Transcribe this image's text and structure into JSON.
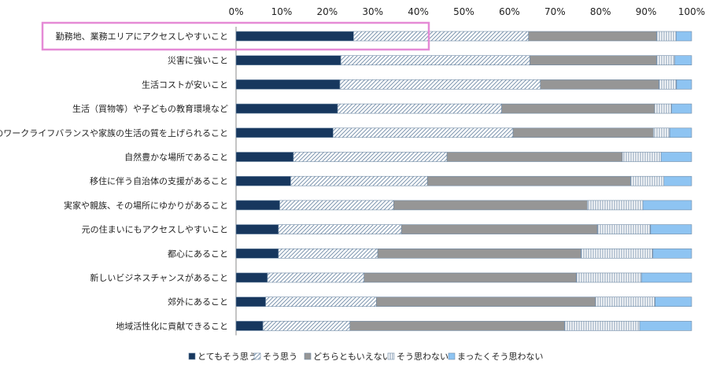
{
  "chart_data": {
    "type": "bar",
    "orientation": "horizontal",
    "stacked": "percent",
    "title": "",
    "xlabel": "",
    "ylabel": "",
    "xlim": [
      0,
      100
    ],
    "x_ticks": [
      "0%",
      "10%",
      "20%",
      "30%",
      "40%",
      "50%",
      "60%",
      "70%",
      "80%",
      "90%",
      "100%"
    ],
    "grid": false,
    "legend_position": "bottom",
    "highlight_category_index": 0,
    "highlight_color": "#e58ad6",
    "categories": [
      "勤務地、業務エリアにアクセスしやすいこと",
      "災害に強いこと",
      "生活コストが安いこと",
      "生活（買物等）や子どもの教育環境など",
      "自身のワークライフバランスや家族の生活の質を上げられること",
      "自然豊かな場所であること",
      "移住に伴う自治体の支援があること",
      "実家や親族、その場所にゆかりがあること",
      "元の住まいにもアクセスしやすいこと",
      "都心にあること",
      "新しいビジネスチャンスがあること",
      "郊外にあること",
      "地域活性化に貢献できること"
    ],
    "series": [
      {
        "name": "とてもそう思う",
        "color": "#17375e",
        "pattern": "solid",
        "values": [
          25.8,
          23.0,
          22.8,
          22.3,
          21.3,
          12.6,
          12.0,
          9.6,
          9.3,
          9.3,
          6.9,
          6.5,
          5.9
        ]
      },
      {
        "name": "そう思う",
        "color": "#ffffff",
        "pattern": "diagonal",
        "values": [
          38.4,
          41.5,
          44.0,
          36.0,
          39.5,
          33.7,
          30.0,
          25.0,
          27.0,
          21.8,
          21.2,
          24.3,
          19.1
        ]
      },
      {
        "name": "どちらともいえない",
        "color": "#969696",
        "pattern": "solid",
        "values": [
          28.1,
          27.8,
          26.0,
          33.6,
          30.8,
          38.5,
          44.6,
          42.5,
          43.0,
          44.6,
          46.6,
          48.1,
          47.1
        ]
      },
      {
        "name": "そう思わない",
        "color": "#ffffff",
        "pattern": "vertical",
        "values": [
          4.3,
          4.0,
          3.9,
          3.7,
          3.6,
          8.5,
          7.3,
          12.2,
          11.7,
          15.8,
          14.3,
          13.1,
          16.5
        ]
      },
      {
        "name": "まったくそう思わない",
        "color": "#8ec4f2",
        "pattern": "solid",
        "values": [
          3.4,
          3.7,
          3.3,
          4.4,
          4.8,
          6.7,
          6.1,
          10.7,
          9.0,
          8.5,
          11.0,
          8.0,
          11.4
        ]
      }
    ]
  }
}
